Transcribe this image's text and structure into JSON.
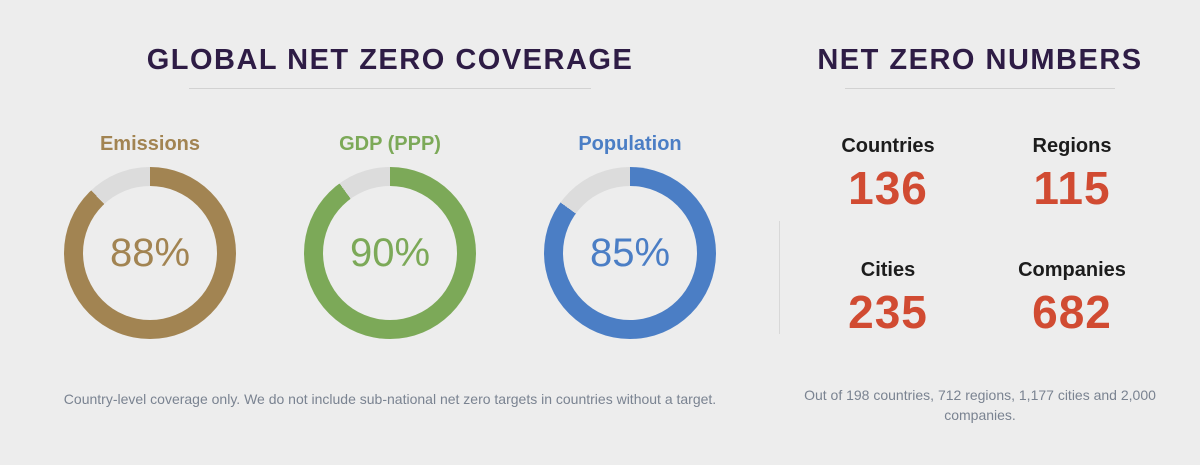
{
  "page": {
    "background": "#EDEDED"
  },
  "left_panel": {
    "title": "GLOBAL NET ZERO COVERAGE",
    "donuts": [
      {
        "label": "Emissions",
        "percent": 88,
        "display": "88%",
        "color": "#A28452"
      },
      {
        "label": "GDP (PPP)",
        "percent": 90,
        "display": "90%",
        "color": "#7CA958"
      },
      {
        "label": "Population",
        "percent": 85,
        "display": "85%",
        "color": "#4B7EC5"
      }
    ],
    "remainder_color": "#DCDCDC",
    "footnote": "Country-level coverage only. We do not include sub-national net zero targets in countries without a target."
  },
  "right_panel": {
    "title": "NET ZERO NUMBERS",
    "stats": [
      {
        "label": "Countries",
        "value": "136"
      },
      {
        "label": "Regions",
        "value": "115"
      },
      {
        "label": "Cities",
        "value": "235"
      },
      {
        "label": "Companies",
        "value": "682"
      }
    ],
    "value_color": "#D14B32",
    "footnote": "Out of 198 countries, 712 regions, 1,177 cities and 2,000 companies."
  },
  "chart_data": [
    {
      "type": "pie",
      "subtype": "donut-gauge-set",
      "title": "GLOBAL NET ZERO COVERAGE",
      "series": [
        {
          "name": "Emissions",
          "value": 88,
          "unit": "%",
          "color": "#A28452"
        },
        {
          "name": "GDP (PPP)",
          "value": 90,
          "unit": "%",
          "color": "#7CA958"
        },
        {
          "name": "Population",
          "value": 85,
          "unit": "%",
          "color": "#4B7EC5"
        }
      ],
      "remainder_color": "#DCDCDC",
      "legend_position": "above-each-donut",
      "annotation": "Country-level coverage only. We do not include sub-national net zero targets in countries without a target."
    },
    {
      "type": "table",
      "title": "NET ZERO NUMBERS",
      "categories": [
        "Countries",
        "Regions",
        "Cities",
        "Companies"
      ],
      "values": [
        136,
        115,
        235,
        682
      ],
      "denominators": [
        198,
        712,
        1177,
        2000
      ],
      "annotation": "Out of 198 countries, 712 regions, 1,177 cities and 2,000 companies."
    }
  ]
}
